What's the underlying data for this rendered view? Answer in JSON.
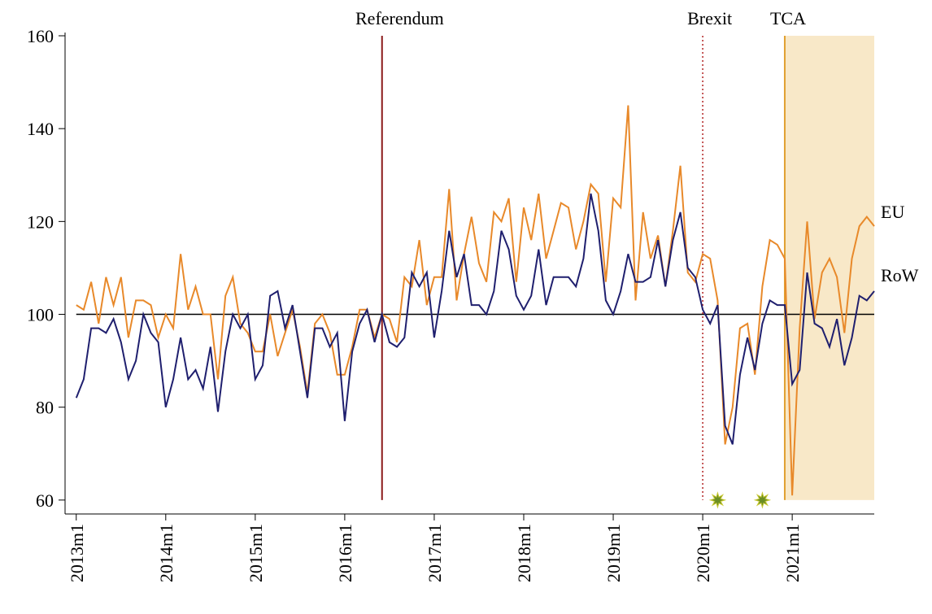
{
  "chart_data": {
    "type": "line",
    "x": [
      636,
      637,
      638,
      639,
      640,
      641,
      642,
      643,
      644,
      645,
      646,
      647,
      648,
      649,
      650,
      651,
      652,
      653,
      654,
      655,
      656,
      657,
      658,
      659,
      660,
      661,
      662,
      663,
      664,
      665,
      666,
      667,
      668,
      669,
      670,
      671,
      672,
      673,
      674,
      675,
      676,
      677,
      678,
      679,
      680,
      681,
      682,
      683,
      684,
      685,
      686,
      687,
      688,
      689,
      690,
      691,
      692,
      693,
      694,
      695,
      696,
      697,
      698,
      699,
      700,
      701,
      702,
      703,
      704,
      705,
      706,
      707,
      708,
      709,
      710,
      711,
      712,
      713,
      714,
      715,
      716,
      717,
      718,
      719,
      720,
      721,
      722,
      723,
      724,
      725,
      726,
      727,
      728,
      729,
      730,
      731,
      732,
      733,
      734,
      735,
      736,
      737,
      738,
      739,
      740,
      741,
      742,
      743
    ],
    "series": [
      {
        "name": "EU",
        "color": "#e8892a",
        "values": [
          102,
          101,
          107,
          98,
          108,
          102,
          108,
          95,
          103,
          103,
          102,
          95,
          100,
          97,
          113,
          101,
          106,
          100,
          100,
          86,
          104,
          108,
          98,
          96,
          92,
          92,
          100,
          91,
          96,
          101,
          93,
          83,
          98,
          100,
          96,
          87,
          87,
          93,
          101,
          101,
          95,
          100,
          99,
          94,
          108,
          106,
          116,
          102,
          108,
          108,
          127,
          103,
          113,
          121,
          111,
          107,
          122,
          120,
          125,
          107,
          123,
          116,
          126,
          112,
          118,
          124,
          123,
          114,
          120,
          128,
          126,
          107,
          125,
          123,
          145,
          103,
          122,
          112,
          117,
          106,
          118,
          132,
          109,
          107,
          113,
          112,
          103,
          72,
          80,
          97,
          98,
          87,
          106,
          116,
          115,
          112,
          61,
          97,
          120,
          99,
          109,
          112,
          108,
          96,
          112,
          119,
          121,
          119
        ]
      },
      {
        "name": "RoW",
        "color": "#1f1f6e",
        "values": [
          82,
          86,
          97,
          97,
          96,
          99,
          94,
          86,
          90,
          100,
          96,
          94,
          80,
          86,
          95,
          86,
          88,
          84,
          93,
          79,
          92,
          100,
          97,
          100,
          86,
          89,
          104,
          105,
          97,
          102,
          92,
          82,
          97,
          97,
          93,
          96,
          77,
          92,
          98,
          101,
          94,
          100,
          94,
          93,
          95,
          109,
          106,
          109,
          95,
          105,
          118,
          108,
          113,
          102,
          102,
          100,
          105,
          118,
          114,
          104,
          101,
          104,
          114,
          102,
          108,
          108,
          108,
          106,
          112,
          126,
          118,
          103,
          100,
          105,
          113,
          107,
          107,
          108,
          116,
          106,
          116,
          122,
          110,
          108,
          101,
          98,
          102,
          76,
          72,
          87,
          95,
          88,
          98,
          103,
          102,
          102,
          85,
          88,
          109,
          98,
          97,
          93,
          99,
          89,
          95,
          104,
          103,
          105
        ]
      }
    ],
    "xlim": [
      634.5,
      743
    ],
    "xticks": [
      {
        "value": 636,
        "label": "2013m1"
      },
      {
        "value": 648,
        "label": "2014m1"
      },
      {
        "value": 660,
        "label": "2015m1"
      },
      {
        "value": 672,
        "label": "2016m1"
      },
      {
        "value": 684,
        "label": "2017m1"
      },
      {
        "value": 696,
        "label": "2018m1"
      },
      {
        "value": 708,
        "label": "2019m1"
      },
      {
        "value": 720,
        "label": "2020m1"
      },
      {
        "value": 732,
        "label": "2021m1"
      }
    ],
    "ylim": [
      57,
      161
    ],
    "yticks": [
      60,
      80,
      100,
      120,
      140,
      160
    ],
    "reference_line": 100,
    "events": [
      {
        "label": "Referendum",
        "x": 677,
        "style": "solid",
        "color": "#8b1a1a"
      },
      {
        "label": "Brexit",
        "x": 720,
        "style": "dotted",
        "color": "#b22222"
      },
      {
        "label": "TCA",
        "x": 731,
        "style": "solid",
        "color": "#e0a030"
      }
    ],
    "shade": {
      "from": 731,
      "to": 743,
      "color": "#f8e8c8"
    },
    "markers": {
      "x": [
        722,
        728
      ],
      "y": [
        60,
        60
      ],
      "color": "#6b8e23"
    }
  }
}
